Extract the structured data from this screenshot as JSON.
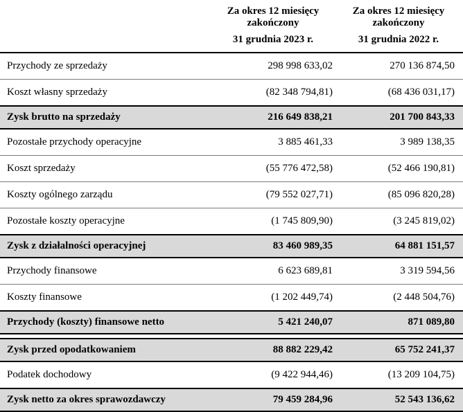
{
  "colors": {
    "total_row_bg": "#d9d9d9",
    "thick_line": "#000000",
    "thin_line": "#7a7a7a"
  },
  "header": {
    "col2023": {
      "period": "Za okres 12 miesięcy zakończony",
      "date": "31 grudnia 2023 r."
    },
    "col2022": {
      "period": "Za okres 12 miesięcy zakończony",
      "date": "31 grudnia 2022 r."
    }
  },
  "rows": [
    {
      "label": "Przychody ze sprzedaży",
      "v2023": "298 998 633,02",
      "v2022": "270 136 874,50",
      "type": "normal"
    },
    {
      "label": "Koszt własny sprzedaży",
      "v2023": "(82 348 794,81)",
      "v2022": "(68 436 031,17)",
      "type": "normal"
    },
    {
      "label": "Zysk brutto na sprzedaży",
      "v2023": "216 649 838,21",
      "v2022": "201 700 843,33",
      "type": "total"
    },
    {
      "label": "Pozostałe przychody operacyjne",
      "v2023": "3 885 461,33",
      "v2022": "3 989 138,35",
      "type": "normal"
    },
    {
      "label": "Koszt sprzedaży",
      "v2023": "(55 776 472,58)",
      "v2022": "(52 466 190,81)",
      "type": "normal"
    },
    {
      "label": "Koszty ogólnego zarządu",
      "v2023": "(79 552 027,71)",
      "v2022": "(85 096 820,28)",
      "type": "normal"
    },
    {
      "label": "Pozostałe koszty operacyjne",
      "v2023": "(1 745 809,90)",
      "v2022": "(3 245 819,02)",
      "type": "normal"
    },
    {
      "label": "Zysk z działalności operacyjnej",
      "v2023": "83 460 989,35",
      "v2022": "64 881 151,57",
      "type": "total"
    },
    {
      "label": "Przychody finansowe",
      "v2023": "6 623 689,81",
      "v2022": "3 319 594,56",
      "type": "normal"
    },
    {
      "label": "Koszty finansowe",
      "v2023": "(1 202 449,74)",
      "v2022": "(2 448 504,76)",
      "type": "normal"
    },
    {
      "label": "Przychody (koszty) finansowe netto",
      "v2023": "5 421 240,07",
      "v2022": "871 089,80",
      "type": "total"
    },
    {
      "label": "Zysk przed opodatkowaniem",
      "v2023": "88 882 229,42",
      "v2022": "65 752 241,37",
      "type": "total"
    },
    {
      "label": "Podatek dochodowy",
      "v2023": "(9 422 944,46)",
      "v2022": "(13 209 104,75)",
      "type": "normal"
    },
    {
      "label": "Zysk netto za okres sprawozdawczy",
      "v2023": "79 459 284,96",
      "v2022": "52 543 136,62",
      "type": "total"
    }
  ]
}
